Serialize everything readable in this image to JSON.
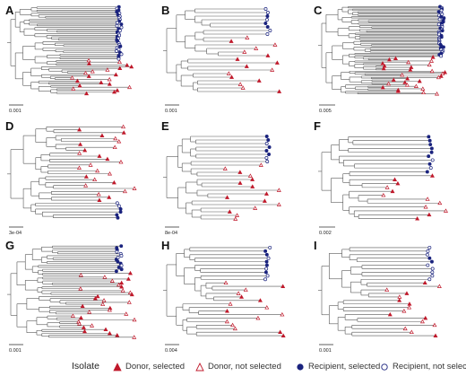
{
  "colors": {
    "donor": "#c0192b",
    "recipient": "#1a237e",
    "branch": "#555555"
  },
  "panels": [
    {
      "label": "A",
      "scale": "0.001"
    },
    {
      "label": "B",
      "scale": "0.001"
    },
    {
      "label": "C",
      "scale": "0.005"
    },
    {
      "label": "D",
      "scale": "3e-04"
    },
    {
      "label": "E",
      "scale": "8e-04"
    },
    {
      "label": "F",
      "scale": "0.002"
    },
    {
      "label": "G",
      "scale": "0.001"
    },
    {
      "label": "H",
      "scale": "0.004"
    },
    {
      "label": "I",
      "scale": "0.001"
    }
  ],
  "legend": {
    "title": "Isolate",
    "items": [
      {
        "label": "Donor, selected",
        "symbol": "filled-triangle",
        "group": "donor"
      },
      {
        "label": "Donor, not selected",
        "symbol": "open-triangle",
        "group": "donor"
      },
      {
        "label": "Recipient, selected",
        "symbol": "filled-circle",
        "group": "recipient"
      },
      {
        "label": "Recipient, not selected",
        "symbol": "open-circle",
        "group": "recipient"
      }
    ]
  }
}
